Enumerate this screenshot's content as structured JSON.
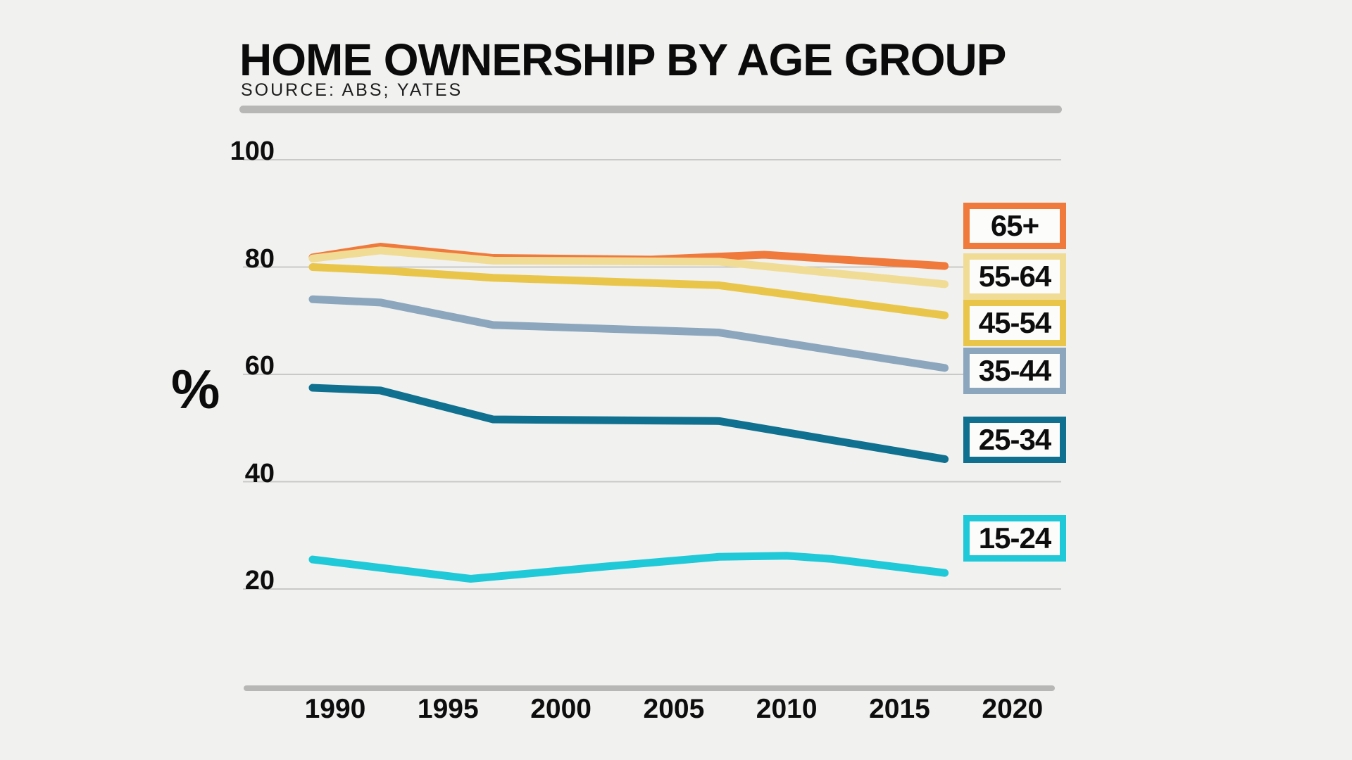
{
  "header": {
    "title": "HOME OWNERSHIP BY AGE GROUP",
    "source": "SOURCE: ABS; YATES"
  },
  "chart_data": {
    "type": "line",
    "title": "HOME OWNERSHIP BY AGE GROUP",
    "subtitle": "SOURCE: ABS; YATES",
    "ylabel": "%",
    "xlabel": "",
    "grid": true,
    "legend_position": "right",
    "xlim": [
      1986,
      2022
    ],
    "ylim": [
      20,
      100
    ],
    "xticks": [
      1990,
      1995,
      2000,
      2005,
      2010,
      2015,
      2020
    ],
    "yticks": [
      100,
      80,
      60,
      40,
      20
    ],
    "series": [
      {
        "name": "65+",
        "color": "#F0793C",
        "points": [
          [
            1989,
            81.8
          ],
          [
            1992,
            83.8
          ],
          [
            1997,
            81.7
          ],
          [
            2004,
            81.4
          ],
          [
            2009,
            82.3
          ],
          [
            2017,
            80.2
          ]
        ]
      },
      {
        "name": "55-64",
        "color": "#F1DC96",
        "points": [
          [
            1989,
            81.6
          ],
          [
            1992,
            83.1
          ],
          [
            1997,
            81.2
          ],
          [
            2007,
            81.0
          ],
          [
            2017,
            76.8
          ]
        ]
      },
      {
        "name": "45-54",
        "color": "#E9C64A",
        "points": [
          [
            1989,
            80.0
          ],
          [
            1992,
            79.4
          ],
          [
            1997,
            78.0
          ],
          [
            2007,
            76.6
          ],
          [
            2017,
            71.0
          ]
        ]
      },
      {
        "name": "35-44",
        "color": "#8CA7BD",
        "points": [
          [
            1989,
            74.0
          ],
          [
            1992,
            73.4
          ],
          [
            1997,
            69.2
          ],
          [
            2007,
            67.8
          ],
          [
            2017,
            61.2
          ]
        ]
      },
      {
        "name": "25-34",
        "color": "#10708F",
        "points": [
          [
            1989,
            57.5
          ],
          [
            1992,
            57.0
          ],
          [
            1997,
            51.6
          ],
          [
            2007,
            51.3
          ],
          [
            2017,
            44.2
          ]
        ]
      },
      {
        "name": "15-24",
        "color": "#1FC9D8",
        "points": [
          [
            1989,
            25.5
          ],
          [
            1996,
            21.9
          ],
          [
            2002,
            24.2
          ],
          [
            2007,
            26.0
          ],
          [
            2010,
            26.2
          ],
          [
            2012,
            25.6
          ],
          [
            2017,
            23.0
          ]
        ]
      }
    ]
  }
}
